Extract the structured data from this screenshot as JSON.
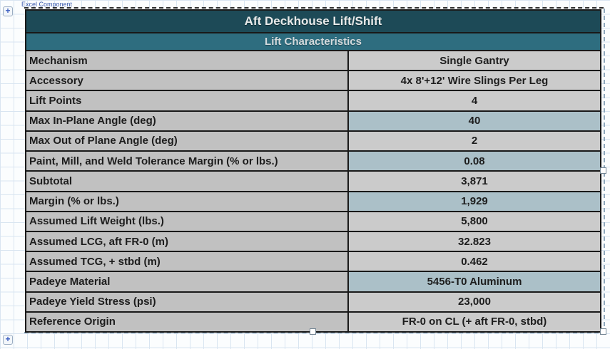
{
  "page": {
    "component_label": "Excel Component",
    "expand_top_glyph": "+",
    "expand_bottom_glyph": "+"
  },
  "object": {
    "title": "Aft Deckhouse Lift/Shift",
    "subtitle": "Lift Characteristics",
    "rows": [
      {
        "label": "Mechanism",
        "value": "Single Gantry",
        "input": false
      },
      {
        "label": "Accessory",
        "value": "4x 8'+12' Wire Slings Per Leg",
        "input": false
      },
      {
        "label": "Lift Points",
        "value": "4",
        "input": false
      },
      {
        "label": "Max In-Plane Angle (deg)",
        "value": "40",
        "input": true
      },
      {
        "label": "Max Out of Plane Angle (deg)",
        "value": "2",
        "input": false
      },
      {
        "label": "Paint, Mill, and Weld Tolerance Margin (% or lbs.)",
        "value": "0.08",
        "input": true
      },
      {
        "label": "Subtotal",
        "value": "3,871",
        "input": false
      },
      {
        "label": "Margin (% or lbs.)",
        "value": "1,929",
        "input": true
      },
      {
        "label": "Assumed Lift Weight (lbs.)",
        "value": "5,800",
        "input": false
      },
      {
        "label": "Assumed LCG, aft FR-0 (m)",
        "value": "32.823",
        "input": false
      },
      {
        "label": "Assumed TCG, + stbd (m)",
        "value": "0.462",
        "input": false
      },
      {
        "label": "Padeye Material",
        "value": "5456-T0 Aluminum",
        "input": true
      },
      {
        "label": "Padeye Yield Stress (psi)",
        "value": "23,000",
        "input": false
      },
      {
        "label": "Reference Origin",
        "value": "FR-0 on CL (+ aft FR-0, stbd)",
        "input": false
      }
    ]
  },
  "colors": {
    "title_bg": "#1d4a57",
    "subtitle_bg": "#2e6d7f",
    "label_bg": "#c1c1c1",
    "value_bg": "#cbcbcb",
    "value_input_bg": "#abc0c8",
    "border": "#191919",
    "gridline": "#d9e5f1",
    "component_label_text": "#3c5cb0"
  }
}
